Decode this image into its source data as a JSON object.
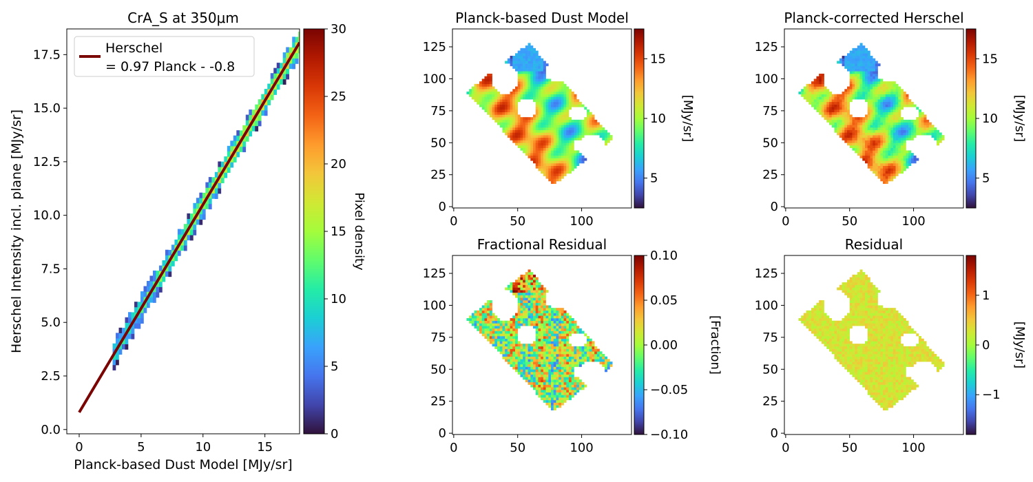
{
  "colormap": [
    "#30123b",
    "#4145ab",
    "#4675ed",
    "#39a2fc",
    "#1bcfd4",
    "#24eca6",
    "#61fc6c",
    "#a4fc3b",
    "#d1e834",
    "#f3c63a",
    "#fe9b2d",
    "#f36315",
    "#d93806",
    "#b11901",
    "#7a0402"
  ],
  "fit_line_color": "#7a0402",
  "chart_data": [
    {
      "type": "heatmap",
      "title": "CrA_S at 350μm",
      "xlabel": "Planck-based Dust Model [MJy/sr]",
      "ylabel": "Herschel Intensity incl. plane [MJy/sr]",
      "xlim": [
        -1,
        17.8
      ],
      "ylim": [
        -0.2,
        18.7
      ],
      "xticks": [
        0,
        5,
        10,
        15
      ],
      "yticks": [
        0.0,
        2.5,
        5.0,
        7.5,
        10.0,
        12.5,
        15.0,
        17.5
      ],
      "xtick_labels": [
        "0",
        "5",
        "10",
        "15"
      ],
      "ytick_labels": [
        "0.0",
        "2.5",
        "5.0",
        "7.5",
        "10.0",
        "12.5",
        "15.0",
        "17.5"
      ],
      "legend": {
        "position": "top-left",
        "label_line1": "Herschel",
        "label_line2": "= 0.97 Planck - -0.8"
      },
      "fit": {
        "slope": 0.97,
        "intercept": 0.8,
        "x_range": [
          0,
          17.8
        ]
      },
      "density_band": {
        "x_range": [
          2.7,
          17.8
        ],
        "slope": 0.97,
        "intercept": 0.8,
        "half_width": 0.35
      },
      "colorbar": {
        "label": "Pixel density",
        "range": [
          0,
          30
        ],
        "ticks": [
          0,
          5,
          10,
          15,
          20,
          25,
          30
        ],
        "tick_labels": [
          "0",
          "5",
          "10",
          "15",
          "20",
          "25",
          "30"
        ]
      }
    },
    {
      "type": "heatmap",
      "title": "Planck-based Dust Model",
      "xlim": [
        -1,
        139
      ],
      "ylim": [
        -1,
        139
      ],
      "xticks": [
        0,
        50,
        100
      ],
      "yticks": [
        0,
        25,
        50,
        75,
        100,
        125
      ],
      "xtick_labels": [
        "0",
        "50",
        "100"
      ],
      "ytick_labels": [
        "0",
        "25",
        "50",
        "75",
        "100",
        "125"
      ],
      "colorbar": {
        "label": "[MJy/sr]",
        "range": [
          2.5,
          17.5
        ],
        "ticks": [
          5,
          10,
          15
        ],
        "tick_labels": [
          "5",
          "10",
          "15"
        ]
      }
    },
    {
      "type": "heatmap",
      "title": "Planck-corrected Herschel",
      "xlim": [
        -1,
        139
      ],
      "ylim": [
        -1,
        139
      ],
      "xticks": [
        0,
        50,
        100
      ],
      "yticks": [
        0,
        25,
        50,
        75,
        100,
        125
      ],
      "xtick_labels": [
        "0",
        "50",
        "100"
      ],
      "ytick_labels": [
        "0",
        "25",
        "50",
        "75",
        "100",
        "125"
      ],
      "colorbar": {
        "label": "[MJy/sr]",
        "range": [
          2.5,
          17.5
        ],
        "ticks": [
          5,
          10,
          15
        ],
        "tick_labels": [
          "5",
          "10",
          "15"
        ]
      }
    },
    {
      "type": "heatmap",
      "title": "Fractional Residual",
      "xlim": [
        -1,
        139
      ],
      "ylim": [
        -1,
        139
      ],
      "xticks": [
        0,
        50,
        100
      ],
      "yticks": [
        0,
        25,
        50,
        75,
        100,
        125
      ],
      "xtick_labels": [
        "0",
        "50",
        "100"
      ],
      "ytick_labels": [
        "0",
        "25",
        "50",
        "75",
        "100",
        "125"
      ],
      "colorbar": {
        "label": "[Fraction]",
        "range": [
          -0.1,
          0.1
        ],
        "ticks": [
          -0.1,
          -0.05,
          0.0,
          0.05,
          0.1
        ],
        "tick_labels": [
          "−0.10",
          "−0.05",
          "0.00",
          "0.05",
          "0.10"
        ]
      }
    },
    {
      "type": "heatmap",
      "title": "Residual",
      "xlim": [
        -1,
        139
      ],
      "ylim": [
        -1,
        139
      ],
      "xticks": [
        0,
        50,
        100
      ],
      "yticks": [
        0,
        25,
        50,
        75,
        100,
        125
      ],
      "xtick_labels": [
        "0",
        "50",
        "100"
      ],
      "ytick_labels": [
        "0",
        "25",
        "50",
        "75",
        "100",
        "125"
      ],
      "colorbar": {
        "label": "[MJy/sr]",
        "range": [
          -1.8,
          1.8
        ],
        "ticks": [
          -1,
          0,
          1
        ],
        "tick_labels": [
          "−1",
          "0",
          "1"
        ]
      }
    }
  ],
  "map_footprint": {
    "corners": [
      [
        10,
        90
      ],
      [
        59,
        128
      ],
      [
        125,
        53
      ],
      [
        78,
        17
      ]
    ]
  },
  "masked_regions": [
    {
      "center": [
        40,
        100
      ],
      "radius": [
        10,
        12
      ]
    },
    {
      "center": [
        80,
        105
      ],
      "radius": [
        9,
        7
      ]
    },
    {
      "center": [
        57,
        77
      ],
      "radius": [
        8,
        8
      ]
    },
    {
      "center": [
        97,
        73
      ],
      "radius": [
        7,
        6
      ]
    },
    {
      "center": [
        108,
        47
      ],
      "radius": [
        11,
        9
      ]
    },
    {
      "center": [
        98,
        48
      ],
      "radius": [
        5,
        4
      ]
    }
  ]
}
